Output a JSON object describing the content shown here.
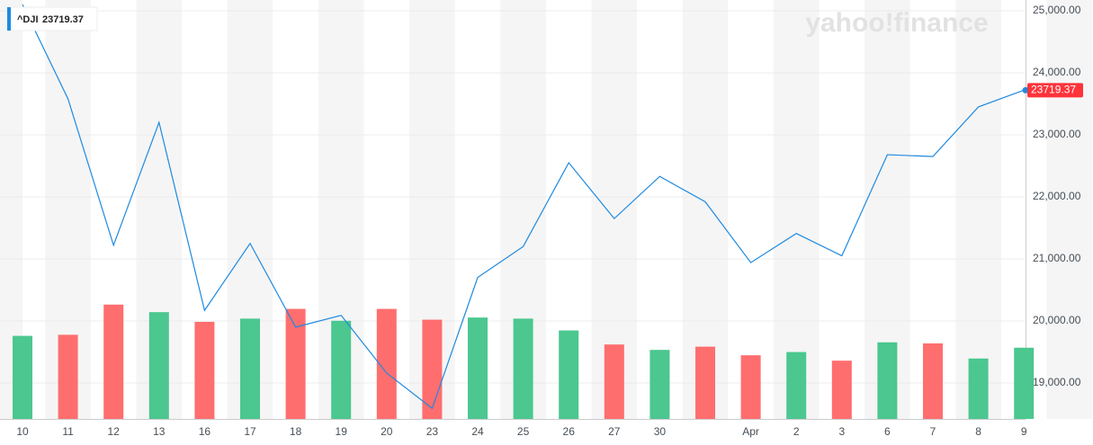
{
  "chart_data": {
    "type": "line",
    "symbol": "^DJI",
    "last_value": 23719.37,
    "watermark": "yahoo!finance",
    "categories": [
      "10",
      "11",
      "12",
      "13",
      "16",
      "17",
      "18",
      "19",
      "20",
      "23",
      "24",
      "25",
      "26",
      "27",
      "30",
      null,
      "Apr",
      "2",
      "3",
      "6",
      "7",
      "8",
      "9"
    ],
    "series": [
      {
        "name": "^DJI",
        "color": "#1e8ae0",
        "values": [
          25100,
          23580,
          21220,
          23200,
          20170,
          21250,
          19900,
          20090,
          19160,
          18590,
          20700,
          21200,
          22550,
          21650,
          22330,
          21920,
          20940,
          21410,
          21050,
          22680,
          22650,
          23450,
          23719.37
        ]
      }
    ],
    "volume": {
      "values": [
        77,
        78,
        106,
        99,
        90,
        93,
        102,
        91,
        102,
        92,
        94,
        93,
        82,
        69,
        64,
        67,
        59,
        62,
        54,
        71,
        70,
        56,
        66
      ],
      "colors": [
        "#4bc78f",
        "#ff6e6e",
        "#ff6e6e",
        "#4bc78f",
        "#ff6e6e",
        "#4bc78f",
        "#ff6e6e",
        "#4bc78f",
        "#ff6e6e",
        "#ff6e6e",
        "#4bc78f",
        "#4bc78f",
        "#4bc78f",
        "#ff6e6e",
        "#4bc78f",
        "#ff6e6e",
        "#ff6e6e",
        "#4bc78f",
        "#ff6e6e",
        "#4bc78f",
        "#ff6e6e",
        "#4bc78f",
        "#4bc78f"
      ],
      "ylim": [
        0,
        120
      ]
    },
    "ylim": [
      18420,
      25174
    ],
    "yticks": [
      {
        "value": 19000,
        "label": "19,000.00"
      },
      {
        "value": 20000,
        "label": "20,000.00"
      },
      {
        "value": 21000,
        "label": "21,000.00"
      },
      {
        "value": 22000,
        "label": "22,000.00"
      },
      {
        "value": 23000,
        "label": "23,000.00"
      },
      {
        "value": 24000,
        "label": "24,000.00"
      },
      {
        "value": 25000,
        "label": "25,000.00"
      }
    ],
    "grid": true
  }
}
